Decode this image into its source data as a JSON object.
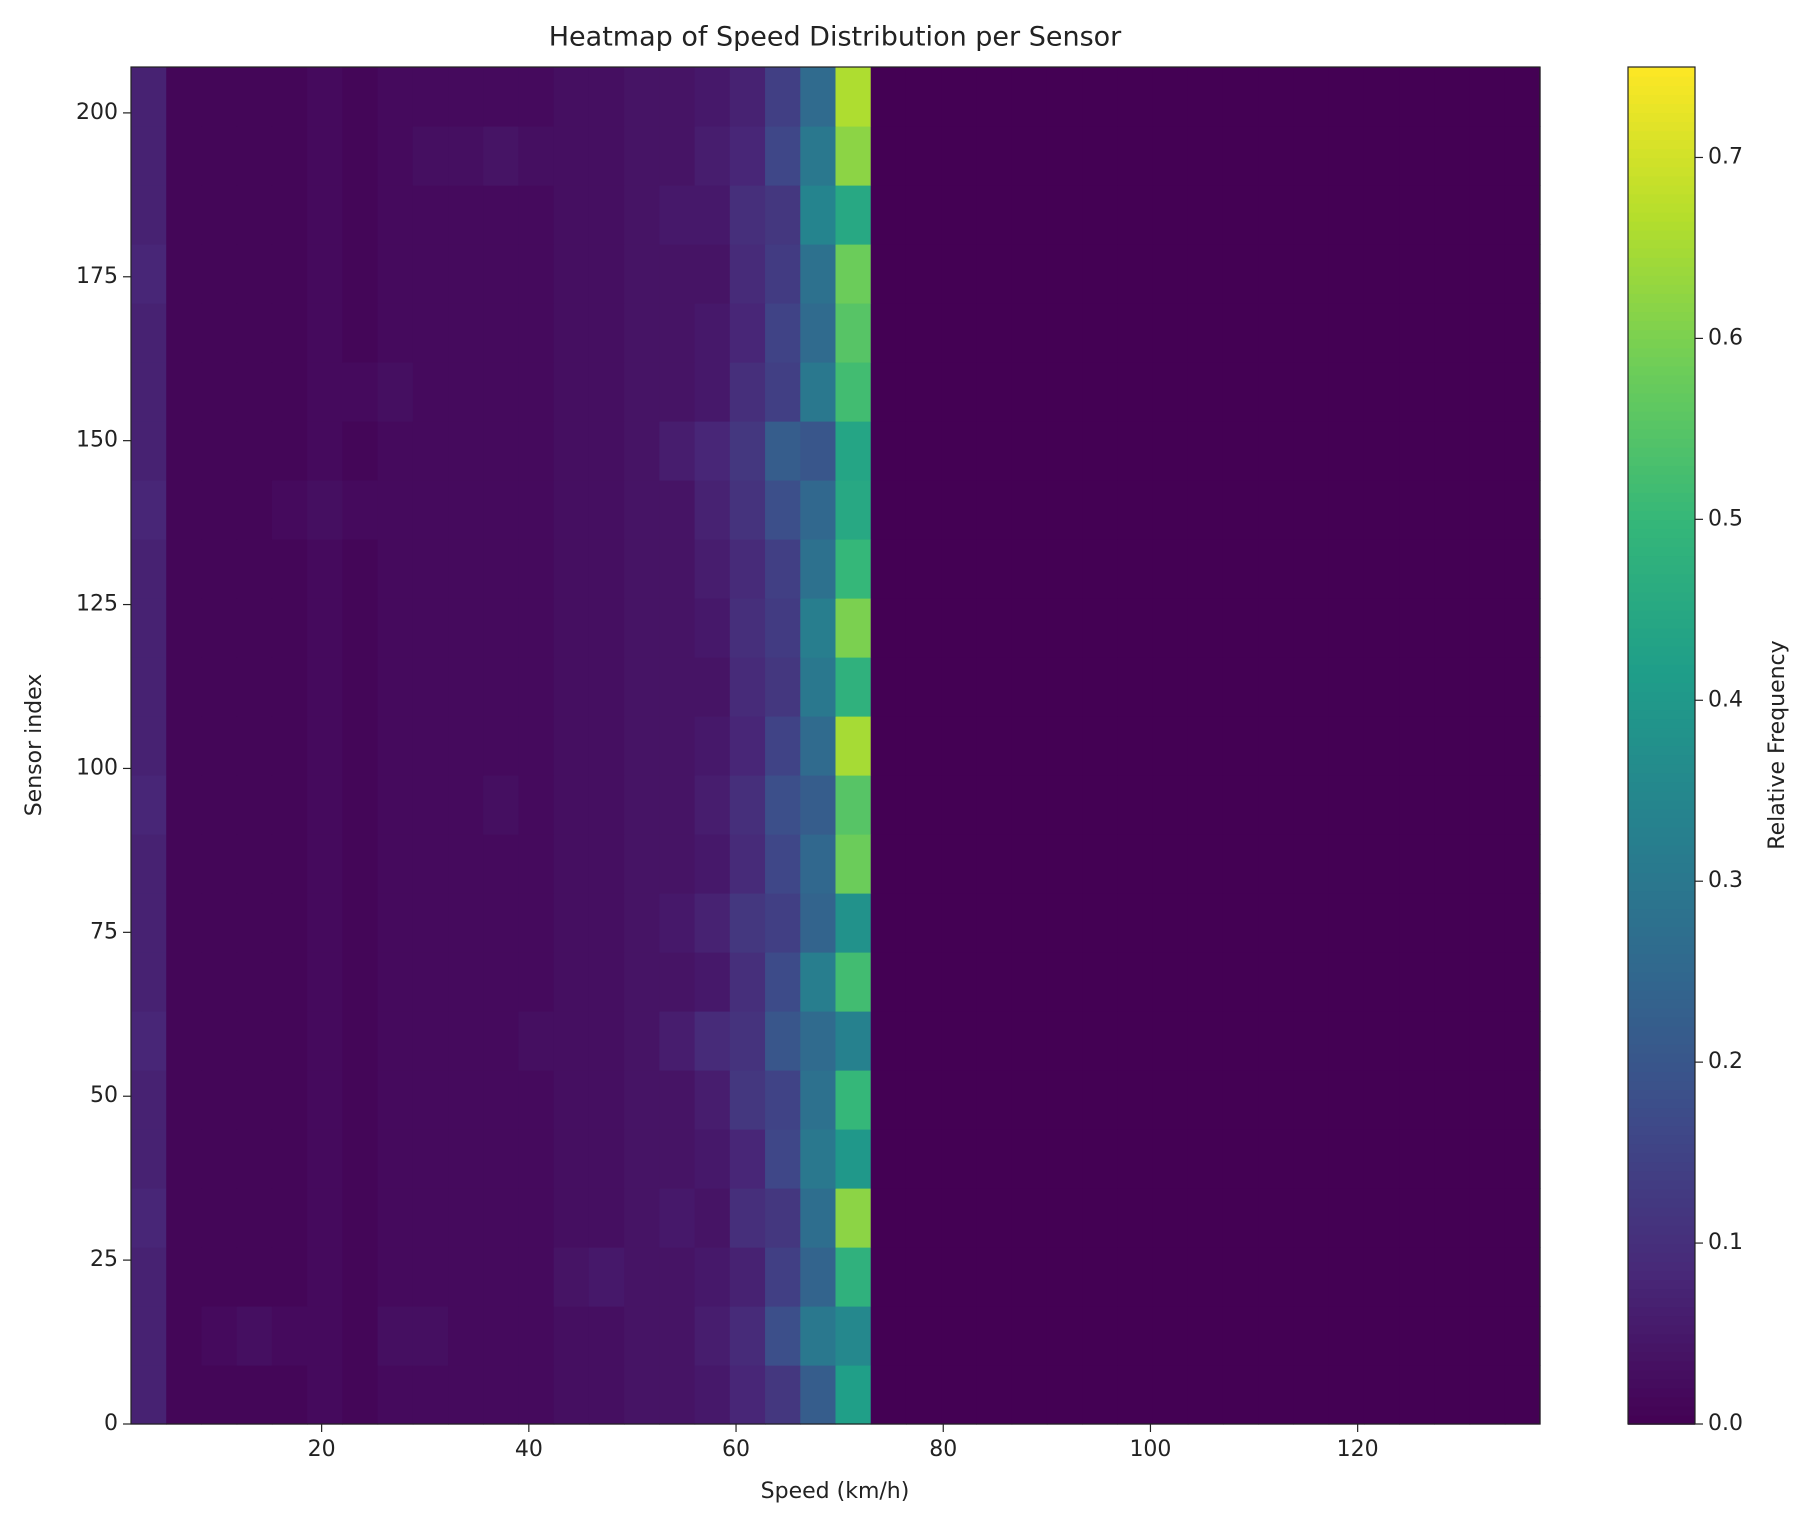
{
  "chart_data": {
    "type": "heatmap",
    "title": "Heatmap of Speed Distribution per Sensor",
    "x_label": "Speed (km/h)",
    "y_label": "Sensor index",
    "colorbar_label": "Relative Frequency",
    "xlim": [
      1.6,
      137.6
    ],
    "ylim": [
      0,
      207
    ],
    "xticks": [
      20,
      40,
      60,
      80,
      100,
      120
    ],
    "yticks": [
      0,
      25,
      50,
      75,
      100,
      125,
      150,
      175,
      200
    ],
    "clim": [
      0,
      0.75
    ],
    "cticks": [
      0.0,
      0.1,
      0.2,
      0.3,
      0.4,
      0.5,
      0.6,
      0.7
    ],
    "cticks_labels": [
      "0.0",
      "0.1",
      "0.2",
      "0.3",
      "0.4",
      "0.5",
      "0.6",
      "0.7"
    ],
    "bins": [
      1.6,
      5,
      8.4,
      11.8,
      15.2,
      18.6,
      22,
      25.4,
      28.8,
      32.2,
      35.6,
      39,
      42.4,
      45.8,
      49.2,
      52.6,
      56,
      59.4,
      62.8,
      66.2,
      69.6,
      73,
      76.4,
      79.8,
      83.2,
      86.6,
      90,
      93.4,
      96.8,
      100.2,
      103.6,
      107,
      110.4,
      113.8,
      117.2,
      120.6,
      124,
      127.4,
      130.8,
      134.2,
      137.6
    ],
    "y_edges": [
      0,
      9,
      18,
      27,
      36,
      45,
      54,
      63,
      72,
      81,
      90,
      99,
      108,
      117,
      126,
      135,
      144,
      153,
      162,
      171,
      180,
      189,
      198,
      207
    ],
    "z": [
      [
        0.07,
        0.01,
        0.01,
        0.01,
        0.01,
        0.02,
        0.01,
        0.02,
        0.02,
        0.02,
        0.02,
        0.02,
        0.03,
        0.03,
        0.04,
        0.04,
        0.05,
        0.08,
        0.12,
        0.22,
        0.42,
        0,
        0,
        0,
        0,
        0,
        0,
        0,
        0,
        0,
        0,
        0,
        0,
        0,
        0,
        0,
        0,
        0,
        0,
        0
      ],
      [
        0.07,
        0.01,
        0.02,
        0.03,
        0.02,
        0.02,
        0.01,
        0.03,
        0.03,
        0.02,
        0.02,
        0.02,
        0.03,
        0.03,
        0.04,
        0.04,
        0.06,
        0.09,
        0.18,
        0.3,
        0.35,
        0,
        0,
        0,
        0,
        0,
        0,
        0,
        0,
        0,
        0,
        0,
        0,
        0,
        0,
        0,
        0,
        0,
        0,
        0
      ],
      [
        0.07,
        0.01,
        0.01,
        0.01,
        0.01,
        0.02,
        0.01,
        0.02,
        0.02,
        0.02,
        0.02,
        0.02,
        0.04,
        0.05,
        0.04,
        0.04,
        0.05,
        0.07,
        0.14,
        0.24,
        0.48,
        0,
        0,
        0,
        0,
        0,
        0,
        0,
        0,
        0,
        0,
        0,
        0,
        0,
        0,
        0,
        0,
        0,
        0,
        0
      ],
      [
        0.08,
        0.01,
        0.01,
        0.01,
        0.01,
        0.02,
        0.01,
        0.02,
        0.02,
        0.02,
        0.02,
        0.02,
        0.03,
        0.03,
        0.04,
        0.05,
        0.04,
        0.1,
        0.12,
        0.27,
        0.62,
        0,
        0,
        0,
        0,
        0,
        0,
        0,
        0,
        0,
        0,
        0,
        0,
        0,
        0,
        0,
        0,
        0,
        0,
        0
      ],
      [
        0.07,
        0.01,
        0.01,
        0.01,
        0.01,
        0.02,
        0.01,
        0.02,
        0.02,
        0.02,
        0.02,
        0.02,
        0.03,
        0.03,
        0.04,
        0.04,
        0.05,
        0.08,
        0.16,
        0.3,
        0.4,
        0,
        0,
        0,
        0,
        0,
        0,
        0,
        0,
        0,
        0,
        0,
        0,
        0,
        0,
        0,
        0,
        0,
        0,
        0
      ],
      [
        0.07,
        0.01,
        0.01,
        0.01,
        0.01,
        0.02,
        0.01,
        0.02,
        0.02,
        0.02,
        0.02,
        0.02,
        0.03,
        0.03,
        0.04,
        0.04,
        0.06,
        0.12,
        0.15,
        0.28,
        0.5,
        0,
        0,
        0,
        0,
        0,
        0,
        0,
        0,
        0,
        0,
        0,
        0,
        0,
        0,
        0,
        0,
        0,
        0,
        0
      ],
      [
        0.08,
        0.01,
        0.01,
        0.01,
        0.01,
        0.02,
        0.01,
        0.02,
        0.02,
        0.02,
        0.02,
        0.03,
        0.03,
        0.03,
        0.04,
        0.06,
        0.09,
        0.11,
        0.2,
        0.26,
        0.33,
        0,
        0,
        0,
        0,
        0,
        0,
        0,
        0,
        0,
        0,
        0,
        0,
        0,
        0,
        0,
        0,
        0,
        0,
        0
      ],
      [
        0.07,
        0.01,
        0.01,
        0.01,
        0.01,
        0.02,
        0.01,
        0.02,
        0.02,
        0.02,
        0.02,
        0.02,
        0.03,
        0.03,
        0.04,
        0.04,
        0.05,
        0.1,
        0.17,
        0.32,
        0.52,
        0,
        0,
        0,
        0,
        0,
        0,
        0,
        0,
        0,
        0,
        0,
        0,
        0,
        0,
        0,
        0,
        0,
        0,
        0
      ],
      [
        0.07,
        0.01,
        0.01,
        0.01,
        0.01,
        0.02,
        0.01,
        0.02,
        0.02,
        0.02,
        0.02,
        0.02,
        0.03,
        0.03,
        0.04,
        0.05,
        0.07,
        0.12,
        0.14,
        0.24,
        0.38,
        0,
        0,
        0,
        0,
        0,
        0,
        0,
        0,
        0,
        0,
        0,
        0,
        0,
        0,
        0,
        0,
        0,
        0,
        0
      ],
      [
        0.07,
        0.01,
        0.01,
        0.01,
        0.01,
        0.02,
        0.01,
        0.02,
        0.02,
        0.02,
        0.02,
        0.02,
        0.03,
        0.03,
        0.04,
        0.04,
        0.05,
        0.09,
        0.16,
        0.25,
        0.58,
        0,
        0,
        0,
        0,
        0,
        0,
        0,
        0,
        0,
        0,
        0,
        0,
        0,
        0,
        0,
        0,
        0,
        0,
        0
      ],
      [
        0.08,
        0.01,
        0.01,
        0.01,
        0.01,
        0.02,
        0.01,
        0.02,
        0.02,
        0.02,
        0.03,
        0.02,
        0.03,
        0.03,
        0.04,
        0.04,
        0.06,
        0.1,
        0.18,
        0.22,
        0.55,
        0,
        0,
        0,
        0,
        0,
        0,
        0,
        0,
        0,
        0,
        0,
        0,
        0,
        0,
        0,
        0,
        0,
        0,
        0
      ],
      [
        0.07,
        0.01,
        0.01,
        0.01,
        0.01,
        0.02,
        0.01,
        0.02,
        0.02,
        0.02,
        0.02,
        0.02,
        0.03,
        0.03,
        0.04,
        0.04,
        0.05,
        0.08,
        0.15,
        0.26,
        0.65,
        0,
        0,
        0,
        0,
        0,
        0,
        0,
        0,
        0,
        0,
        0,
        0,
        0,
        0,
        0,
        0,
        0,
        0,
        0
      ],
      [
        0.07,
        0.01,
        0.01,
        0.01,
        0.01,
        0.02,
        0.01,
        0.02,
        0.02,
        0.02,
        0.02,
        0.02,
        0.03,
        0.03,
        0.04,
        0.04,
        0.04,
        0.09,
        0.12,
        0.3,
        0.48,
        0,
        0,
        0,
        0,
        0,
        0,
        0,
        0,
        0,
        0,
        0,
        0,
        0,
        0,
        0,
        0,
        0,
        0,
        0
      ],
      [
        0.07,
        0.01,
        0.01,
        0.01,
        0.01,
        0.02,
        0.01,
        0.02,
        0.02,
        0.02,
        0.02,
        0.02,
        0.03,
        0.03,
        0.04,
        0.04,
        0.05,
        0.1,
        0.13,
        0.32,
        0.6,
        0,
        0,
        0,
        0,
        0,
        0,
        0,
        0,
        0,
        0,
        0,
        0,
        0,
        0,
        0,
        0,
        0,
        0,
        0
      ],
      [
        0.07,
        0.01,
        0.01,
        0.01,
        0.01,
        0.02,
        0.01,
        0.02,
        0.02,
        0.02,
        0.02,
        0.02,
        0.03,
        0.03,
        0.04,
        0.04,
        0.06,
        0.09,
        0.14,
        0.28,
        0.5,
        0,
        0,
        0,
        0,
        0,
        0,
        0,
        0,
        0,
        0,
        0,
        0,
        0,
        0,
        0,
        0,
        0,
        0,
        0
      ],
      [
        0.08,
        0.01,
        0.01,
        0.01,
        0.02,
        0.03,
        0.02,
        0.02,
        0.02,
        0.02,
        0.02,
        0.02,
        0.03,
        0.03,
        0.04,
        0.04,
        0.07,
        0.11,
        0.18,
        0.25,
        0.45,
        0,
        0,
        0,
        0,
        0,
        0,
        0,
        0,
        0,
        0,
        0,
        0,
        0,
        0,
        0,
        0,
        0,
        0,
        0
      ],
      [
        0.07,
        0.01,
        0.01,
        0.01,
        0.01,
        0.02,
        0.01,
        0.02,
        0.02,
        0.02,
        0.02,
        0.02,
        0.03,
        0.03,
        0.04,
        0.06,
        0.08,
        0.12,
        0.22,
        0.2,
        0.44,
        0,
        0,
        0,
        0,
        0,
        0,
        0,
        0,
        0,
        0,
        0,
        0,
        0,
        0,
        0,
        0,
        0,
        0,
        0
      ],
      [
        0.07,
        0.01,
        0.01,
        0.01,
        0.01,
        0.02,
        0.02,
        0.03,
        0.02,
        0.02,
        0.02,
        0.02,
        0.03,
        0.03,
        0.04,
        0.04,
        0.05,
        0.1,
        0.14,
        0.3,
        0.52,
        0,
        0,
        0,
        0,
        0,
        0,
        0,
        0,
        0,
        0,
        0,
        0,
        0,
        0,
        0,
        0,
        0,
        0,
        0
      ],
      [
        0.07,
        0.01,
        0.01,
        0.01,
        0.01,
        0.02,
        0.01,
        0.02,
        0.02,
        0.02,
        0.02,
        0.02,
        0.03,
        0.03,
        0.04,
        0.04,
        0.05,
        0.08,
        0.15,
        0.26,
        0.55,
        0,
        0,
        0,
        0,
        0,
        0,
        0,
        0,
        0,
        0,
        0,
        0,
        0,
        0,
        0,
        0,
        0,
        0,
        0
      ],
      [
        0.08,
        0.01,
        0.01,
        0.01,
        0.01,
        0.02,
        0.01,
        0.02,
        0.02,
        0.02,
        0.02,
        0.02,
        0.03,
        0.03,
        0.04,
        0.04,
        0.04,
        0.09,
        0.13,
        0.28,
        0.58,
        0,
        0,
        0,
        0,
        0,
        0,
        0,
        0,
        0,
        0,
        0,
        0,
        0,
        0,
        0,
        0,
        0,
        0,
        0
      ],
      [
        0.07,
        0.01,
        0.01,
        0.01,
        0.01,
        0.02,
        0.01,
        0.02,
        0.02,
        0.02,
        0.02,
        0.02,
        0.03,
        0.03,
        0.04,
        0.05,
        0.05,
        0.1,
        0.12,
        0.34,
        0.45,
        0,
        0,
        0,
        0,
        0,
        0,
        0,
        0,
        0,
        0,
        0,
        0,
        0,
        0,
        0,
        0,
        0,
        0,
        0
      ],
      [
        0.07,
        0.01,
        0.01,
        0.01,
        0.01,
        0.02,
        0.01,
        0.02,
        0.03,
        0.03,
        0.04,
        0.03,
        0.03,
        0.03,
        0.04,
        0.04,
        0.06,
        0.08,
        0.16,
        0.3,
        0.62,
        0,
        0,
        0,
        0,
        0,
        0,
        0,
        0,
        0,
        0,
        0,
        0,
        0,
        0,
        0,
        0,
        0,
        0,
        0
      ],
      [
        0.07,
        0.01,
        0.01,
        0.01,
        0.01,
        0.02,
        0.01,
        0.02,
        0.02,
        0.02,
        0.02,
        0.02,
        0.03,
        0.03,
        0.04,
        0.04,
        0.05,
        0.07,
        0.14,
        0.26,
        0.66,
        0,
        0,
        0,
        0,
        0,
        0,
        0,
        0,
        0,
        0,
        0,
        0,
        0,
        0,
        0,
        0,
        0,
        0,
        0
      ]
    ]
  }
}
